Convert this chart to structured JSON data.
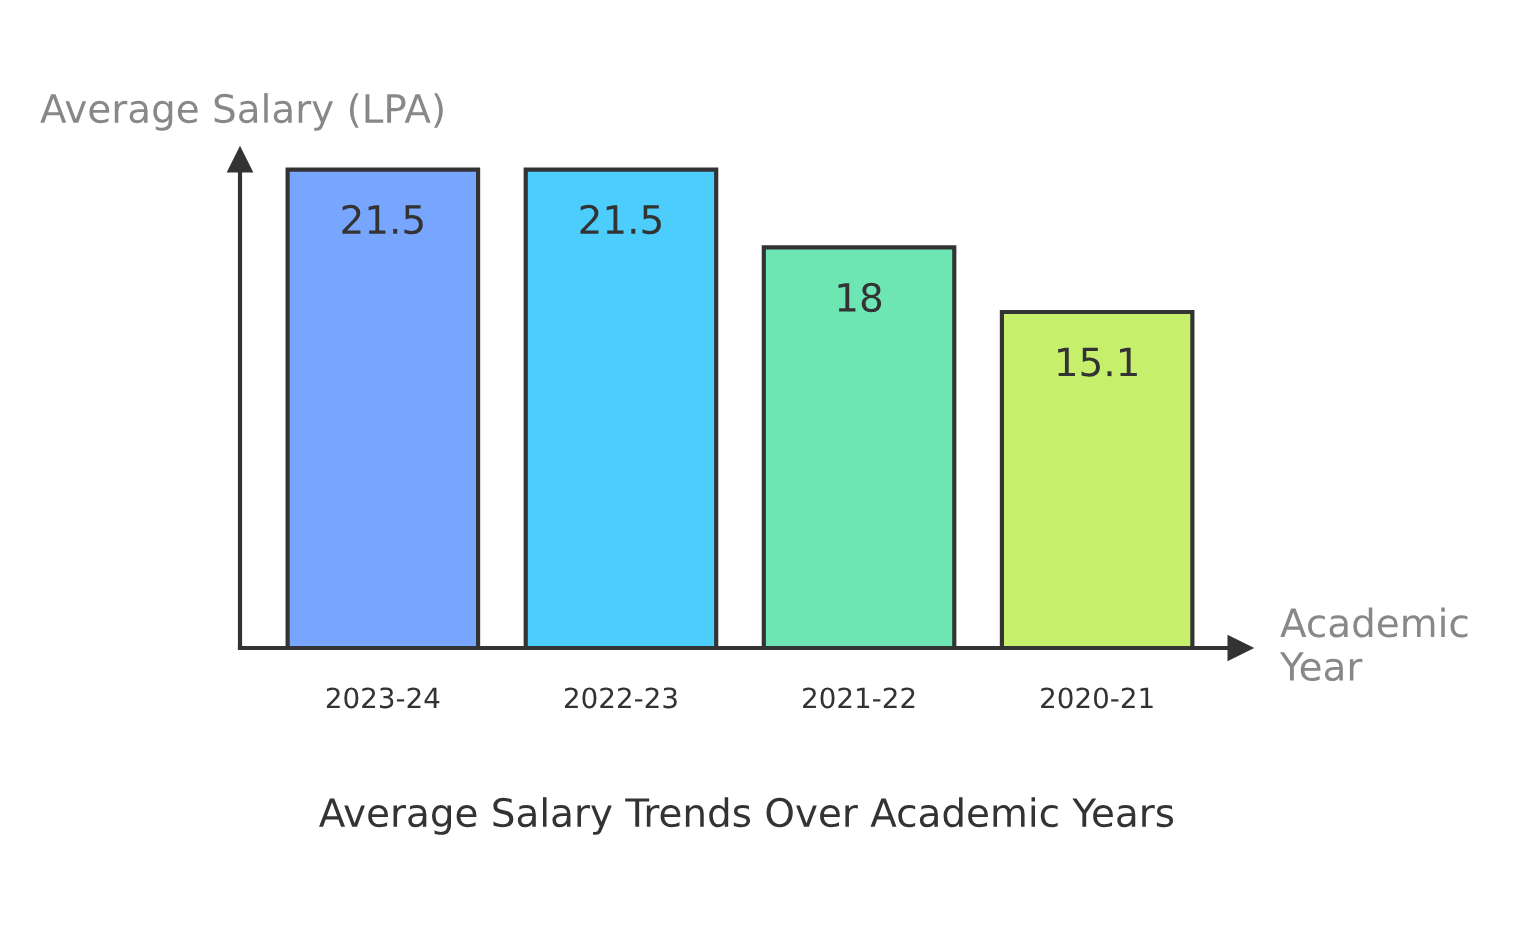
{
  "chart_data": {
    "type": "bar",
    "title": "Average Salary Trends Over Academic Years",
    "xlabel": "Academic\nYear",
    "ylabel": "Average Salary (LPA)",
    "categories": [
      "2023-24",
      "2022-23",
      "2021-22",
      "2020-21"
    ],
    "values": [
      21.5,
      21.5,
      18,
      15.1
    ],
    "colors": [
      "#78a6ff",
      "#4ccdfc",
      "#6ee6b4",
      "#c6ef6c"
    ],
    "data_labels": true,
    "grid": false,
    "legend": false
  }
}
